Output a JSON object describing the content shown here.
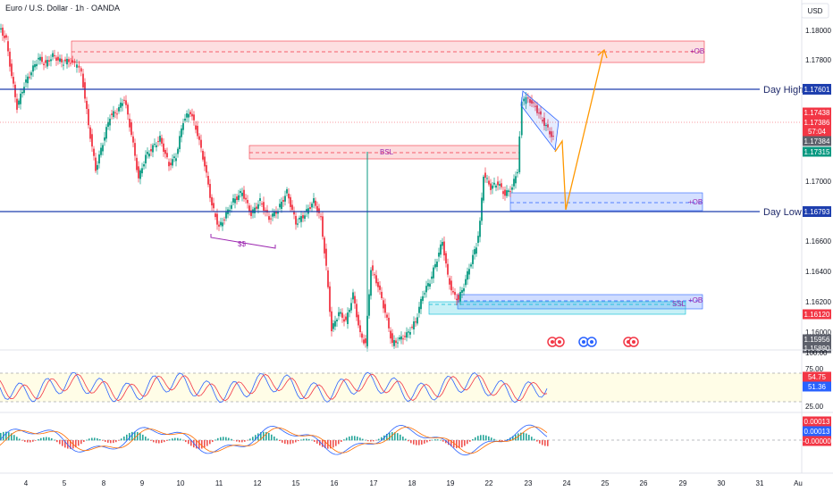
{
  "header": {
    "title": "Euro / U.S. Dollar · 1h · OANDA",
    "currency": "USD"
  },
  "chart_data": {
    "type": "candlestick",
    "y_ticks": [
      "1.18000",
      "1.17800",
      "1.17000",
      "1.16600",
      "1.16400",
      "1.16200",
      "1.16000"
    ],
    "x_ticks": [
      "4",
      "5",
      "8",
      "9",
      "10",
      "11",
      "12",
      "15",
      "16",
      "17",
      "18",
      "19",
      "22",
      "23",
      "24",
      "25",
      "26",
      "29",
      "30",
      "31",
      "Au"
    ],
    "levels": [
      {
        "label": "Day High",
        "value": "1.17601"
      },
      {
        "label": "Day Low",
        "value": "1.16793"
      }
    ],
    "zones": [
      {
        "label": "+OB"
      },
      {
        "label": "BSL"
      },
      {
        "label": "+OB"
      },
      {
        "label": "+OB"
      },
      {
        "label": "SSL"
      },
      {
        "label": "$$"
      }
    ],
    "price_tags": [
      {
        "value": "1.17438",
        "color": "#f23645"
      },
      {
        "value": "1.17386",
        "color": "#f23645"
      },
      {
        "value": "57:04",
        "color": "#f23645"
      },
      {
        "value": "1.17384",
        "color": "#5d606b"
      },
      {
        "value": "1.17315",
        "color": "#089981"
      },
      {
        "value": "1.16120",
        "color": "#f23645"
      },
      {
        "value": "1.15956",
        "color": "#5d606b"
      },
      {
        "value": "1.15890",
        "color": "#5d606b"
      }
    ],
    "rsi_panel": {
      "y_ticks": [
        "100.00",
        "75.00",
        "25.00"
      ],
      "values": [
        "54.75",
        "51.36"
      ],
      "colors": [
        "#f23645",
        "#2962ff"
      ]
    },
    "macd_panel": {
      "values": [
        "0.00013",
        "0.00013",
        "-0.00000"
      ],
      "colors": [
        "#f23645",
        "#2962ff",
        "#f23645"
      ]
    }
  }
}
